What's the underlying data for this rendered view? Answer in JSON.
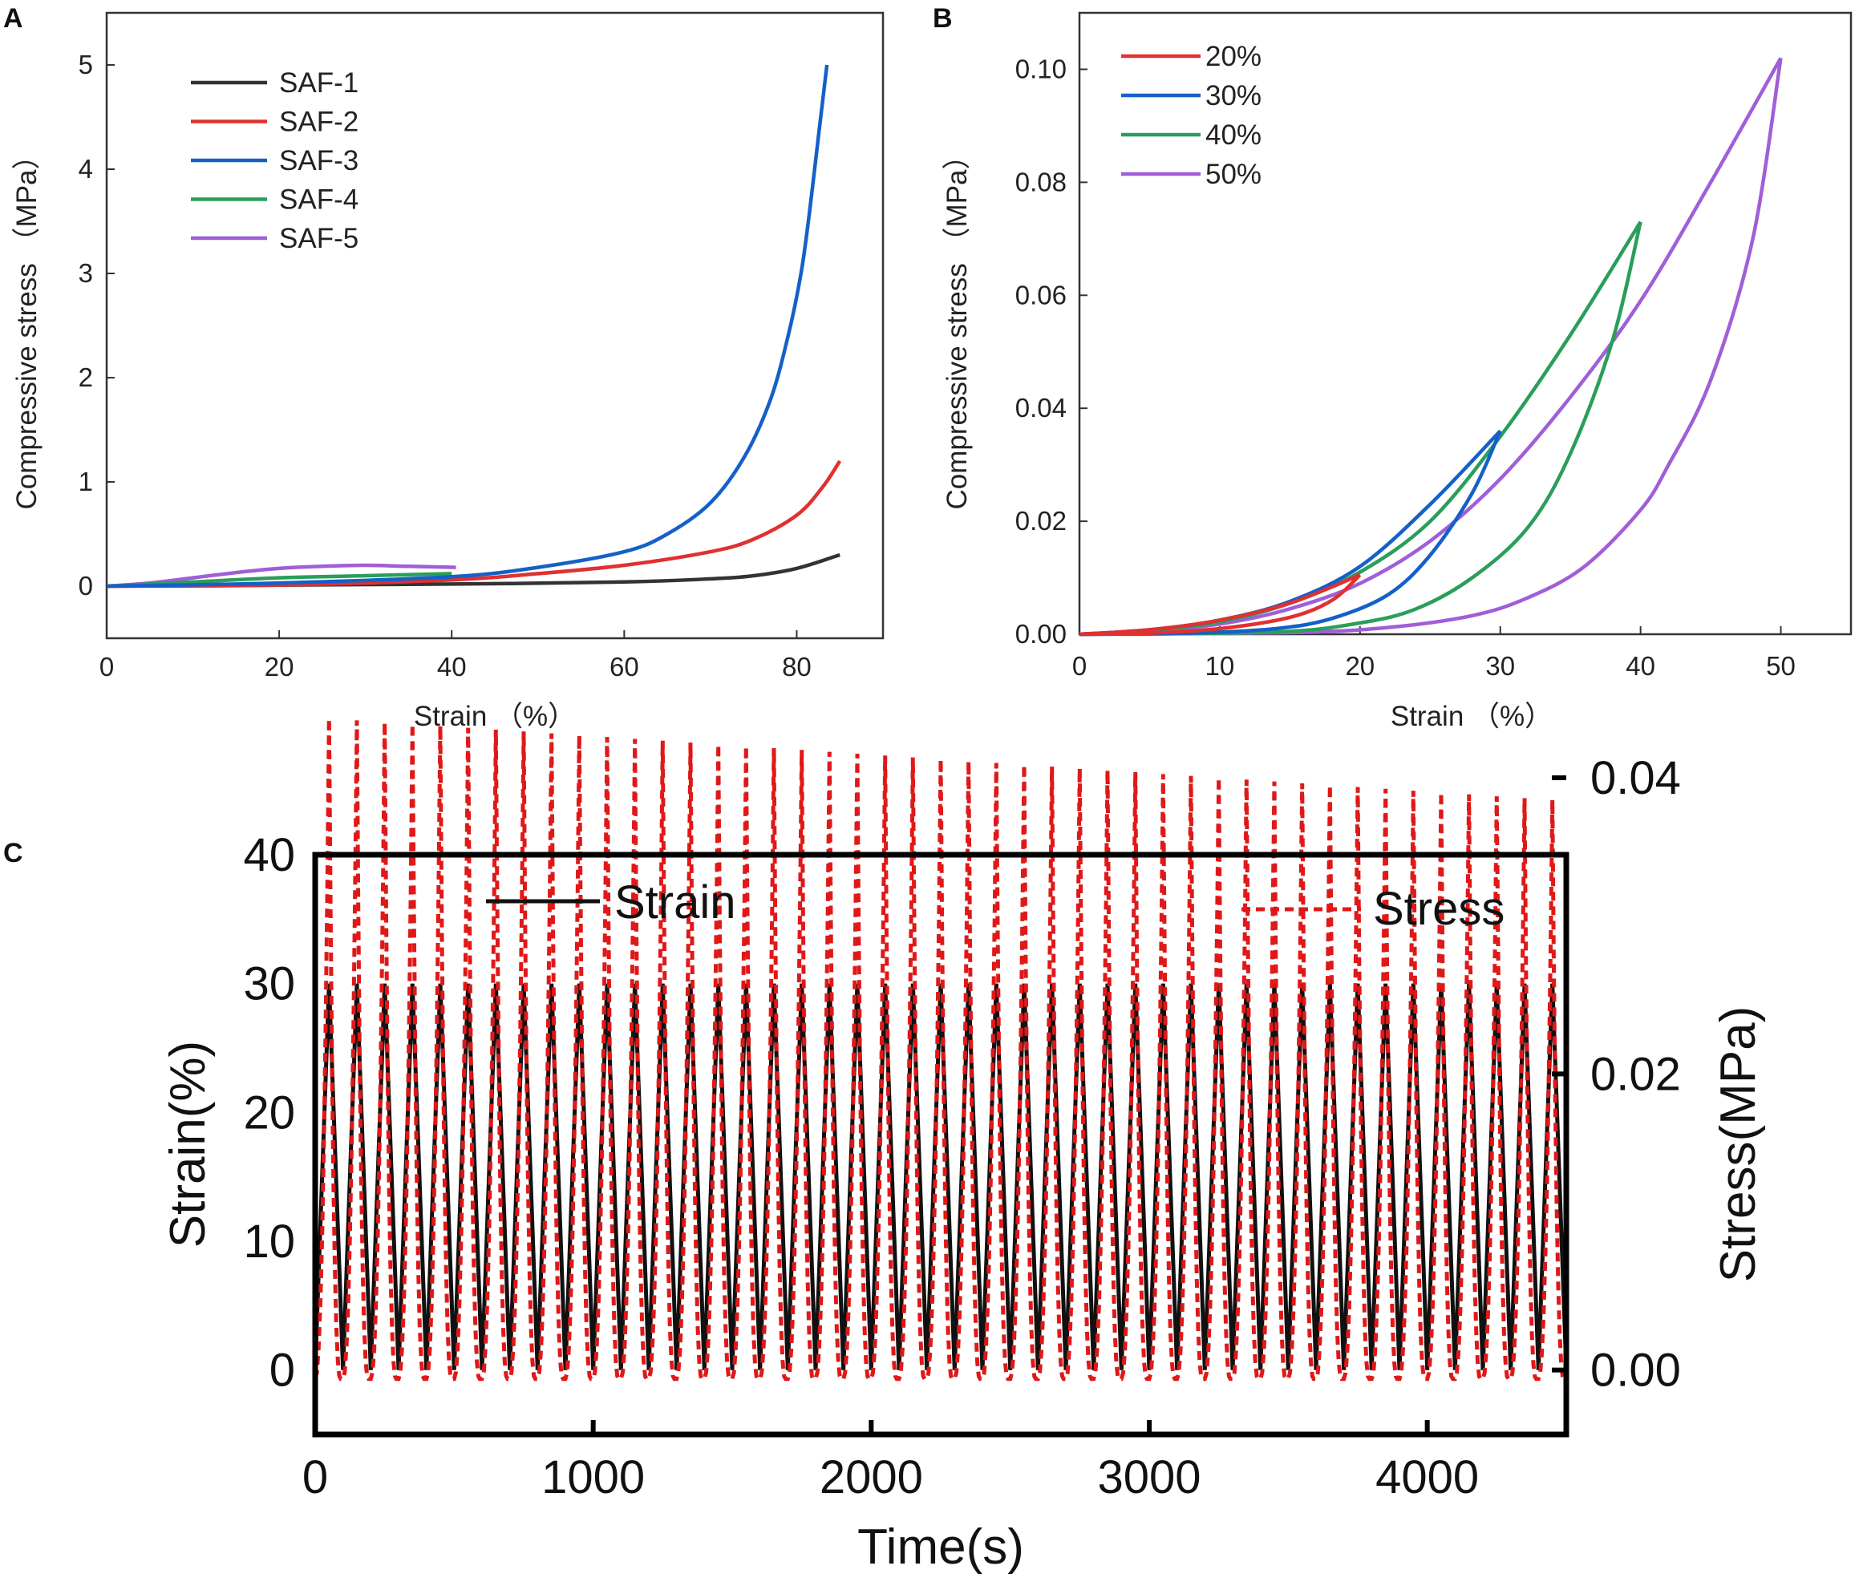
{
  "chart_data": [
    {
      "panel": "A",
      "type": "line",
      "xlabel": "Strain （%）",
      "ylabel": "Compressive stress （MPa）",
      "xlim": [
        0,
        90
      ],
      "ylim": [
        -0.5,
        5.5
      ],
      "xticks": [
        "0",
        "20",
        "40",
        "60",
        "80"
      ],
      "yticks": [
        "0",
        "1",
        "2",
        "3",
        "4",
        "5"
      ],
      "legend_position": "top-left",
      "series": [
        {
          "name": "SAF-1",
          "color": "#333333",
          "points": [
            [
              0,
              0
            ],
            [
              20,
              0.01
            ],
            [
              40,
              0.02
            ],
            [
              60,
              0.04
            ],
            [
              70,
              0.07
            ],
            [
              75,
              0.1
            ],
            [
              80,
              0.17
            ],
            [
              85,
              0.3
            ]
          ]
        },
        {
          "name": "SAF-2",
          "color": "#e03030",
          "points": [
            [
              0,
              0
            ],
            [
              20,
              0.01
            ],
            [
              40,
              0.06
            ],
            [
              50,
              0.12
            ],
            [
              60,
              0.2
            ],
            [
              70,
              0.33
            ],
            [
              75,
              0.45
            ],
            [
              80,
              0.68
            ],
            [
              83,
              0.95
            ],
            [
              85,
              1.2
            ]
          ]
        },
        {
          "name": "SAF-3",
          "color": "#1560c8",
          "points": [
            [
              0,
              0
            ],
            [
              20,
              0.03
            ],
            [
              40,
              0.09
            ],
            [
              50,
              0.18
            ],
            [
              60,
              0.33
            ],
            [
              65,
              0.5
            ],
            [
              70,
              0.8
            ],
            [
              74,
              1.25
            ],
            [
              77,
              1.8
            ],
            [
              79,
              2.4
            ],
            [
              80.5,
              3.0
            ],
            [
              81.5,
              3.6
            ],
            [
              82.5,
              4.3
            ],
            [
              83.5,
              5.0
            ]
          ]
        },
        {
          "name": "SAF-4",
          "color": "#2a9e5a",
          "points": [
            [
              0,
              0
            ],
            [
              10,
              0.04
            ],
            [
              20,
              0.08
            ],
            [
              30,
              0.1
            ],
            [
              40,
              0.12
            ]
          ]
        },
        {
          "name": "SAF-5",
          "color": "#a05ed8",
          "points": [
            [
              0,
              0
            ],
            [
              5,
              0.03
            ],
            [
              10,
              0.08
            ],
            [
              15,
              0.13
            ],
            [
              20,
              0.17
            ],
            [
              25,
              0.19
            ],
            [
              30,
              0.2
            ],
            [
              35,
              0.19
            ],
            [
              40.5,
              0.18
            ]
          ]
        }
      ]
    },
    {
      "panel": "B",
      "type": "line",
      "xlabel": "Strain （%）",
      "ylabel": "Compressive stress （MPa）",
      "xlim": [
        0,
        55
      ],
      "ylim": [
        0,
        0.11
      ],
      "xticks": [
        "0",
        "10",
        "20",
        "30",
        "40",
        "50"
      ],
      "yticks": [
        "0.00",
        "0.02",
        "0.04",
        "0.06",
        "0.08",
        "0.10"
      ],
      "legend_position": "top-left",
      "series": [
        {
          "name": "20%",
          "color": "#e03030",
          "loading": [
            [
              0,
              0
            ],
            [
              5,
              0.0008
            ],
            [
              10,
              0.0025
            ],
            [
              15,
              0.0055
            ],
            [
              20,
              0.0105
            ]
          ],
          "unloading": [
            [
              20,
              0.0105
            ],
            [
              18,
              0.006
            ],
            [
              15,
              0.003
            ],
            [
              10,
              0.001
            ],
            [
              5,
              0.0002
            ],
            [
              0,
              0
            ]
          ]
        },
        {
          "name": "30%",
          "color": "#1560c8",
          "loading": [
            [
              0,
              0
            ],
            [
              5,
              0.0008
            ],
            [
              10,
              0.0025
            ],
            [
              15,
              0.0058
            ],
            [
              20,
              0.012
            ],
            [
              25,
              0.023
            ],
            [
              30,
              0.036
            ]
          ],
          "unloading": [
            [
              30,
              0.036
            ],
            [
              28,
              0.025
            ],
            [
              25,
              0.014
            ],
            [
              22,
              0.007
            ],
            [
              18,
              0.0028
            ],
            [
              14,
              0.001
            ],
            [
              8,
              0.0002
            ],
            [
              0,
              0
            ]
          ]
        },
        {
          "name": "40%",
          "color": "#2a9e5a",
          "loading": [
            [
              0,
              0
            ],
            [
              5,
              0.0007
            ],
            [
              10,
              0.0022
            ],
            [
              15,
              0.0055
            ],
            [
              20,
              0.011
            ],
            [
              25,
              0.02
            ],
            [
              30,
              0.035
            ],
            [
              35,
              0.053
            ],
            [
              40,
              0.073
            ]
          ],
          "unloading": [
            [
              40,
              0.073
            ],
            [
              38,
              0.052
            ],
            [
              35,
              0.032
            ],
            [
              32,
              0.019
            ],
            [
              28,
              0.01
            ],
            [
              24,
              0.0045
            ],
            [
              20,
              0.002
            ],
            [
              14,
              0.0004
            ],
            [
              0,
              0
            ]
          ]
        },
        {
          "name": "50%",
          "color": "#a05ed8",
          "loading": [
            [
              0,
              0
            ],
            [
              5,
              0.0006
            ],
            [
              10,
              0.0018
            ],
            [
              15,
              0.0045
            ],
            [
              20,
              0.009
            ],
            [
              25,
              0.0165
            ],
            [
              30,
              0.0275
            ],
            [
              35,
              0.042
            ],
            [
              40,
              0.059
            ],
            [
              45,
              0.08
            ],
            [
              50,
              0.102
            ]
          ],
          "unloading": [
            [
              50,
              0.102
            ],
            [
              48,
              0.07
            ],
            [
              45,
              0.045
            ],
            [
              42,
              0.03
            ],
            [
              40,
              0.022
            ],
            [
              36,
              0.012
            ],
            [
              32,
              0.0065
            ],
            [
              28,
              0.0033
            ],
            [
              22,
              0.0012
            ],
            [
              15,
              0.0003
            ],
            [
              0,
              0
            ]
          ]
        }
      ]
    },
    {
      "panel": "C",
      "type": "line",
      "xlabel": "Time(s)",
      "ylabel": "Strain(%)",
      "y2label": "Stress(MPa)",
      "xlim": [
        0,
        4500
      ],
      "ylim": [
        -5,
        40
      ],
      "y2lim": [
        -0.00435,
        0.0348
      ],
      "xticks": [
        "0",
        "1000",
        "2000",
        "3000",
        "4000"
      ],
      "yticks": [
        "0",
        "10",
        "20",
        "30",
        "40"
      ],
      "y2ticks": [
        "0.00",
        "0.02",
        "0.04"
      ],
      "cycles": 45,
      "cycle_period_s": 100,
      "strain_peak_pct": 30,
      "stress_peak_first_mpa": 0.044,
      "stress_peak_last_mpa": 0.0385,
      "stress_min_mpa": -0.0006,
      "series": [
        {
          "name": "Strain",
          "color": "#111111",
          "style": "solid"
        },
        {
          "name": "Stress",
          "color": "#e01818",
          "style": "dashed"
        }
      ]
    }
  ]
}
